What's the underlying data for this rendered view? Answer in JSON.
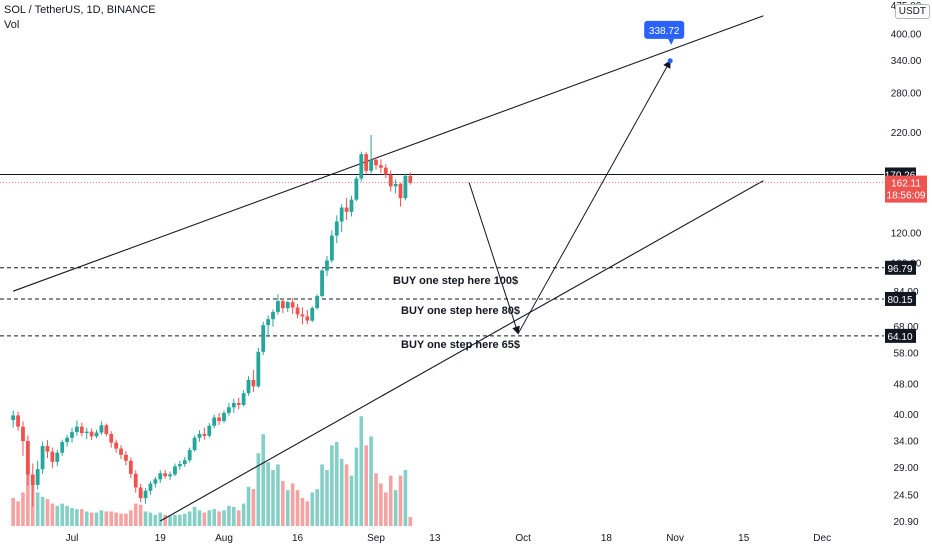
{
  "header": {
    "symbol": "SOL / TetherUS, 1D, BINANCE",
    "volume_label": "Vol",
    "currency": "USDT"
  },
  "colors": {
    "up": "#26a69a",
    "down": "#ef5350",
    "vol_up": "#84cfc6",
    "vol_down": "#f4a3a2",
    "line": "#131722",
    "target": "#2962ff"
  },
  "chart_data": {
    "type": "candlestick",
    "scale": "log",
    "ylim": [
      20.9,
      475
    ],
    "y_ticks": [
      "475.00",
      "400.00",
      "340.00",
      "280.00",
      "220.00",
      "120.00",
      "100.00",
      "84.00",
      "68.00",
      "58.00",
      "48.00",
      "40.00",
      "34.00",
      "29.00",
      "24.50",
      "20.90"
    ],
    "x_ticks": [
      {
        "label": "Jul",
        "date": "2021-07-01"
      },
      {
        "label": "19",
        "date": "2021-07-19"
      },
      {
        "label": "Aug",
        "date": "2021-08-01"
      },
      {
        "label": "16",
        "date": "2021-08-16"
      },
      {
        "label": "Sep",
        "date": "2021-09-01"
      },
      {
        "label": "13",
        "date": "2021-09-13"
      },
      {
        "label": "Oct",
        "date": "2021-10-01"
      },
      {
        "label": "18",
        "date": "2021-10-18"
      },
      {
        "label": "Nov",
        "date": "2021-11-01"
      },
      {
        "label": "15",
        "date": "2021-11-15"
      },
      {
        "label": "Dec",
        "date": "2021-12-01"
      }
    ],
    "start_date": "2021-06-19",
    "ohlc": [
      [
        38.5,
        40.8,
        36.8,
        39.6
      ],
      [
        39.6,
        40.5,
        36.1,
        37.0
      ],
      [
        37.0,
        38.2,
        31.0,
        33.9
      ],
      [
        33.9,
        35.1,
        25.9,
        27.7
      ],
      [
        27.7,
        29.6,
        22.8,
        26.0
      ],
      [
        26.0,
        30.1,
        25.3,
        28.6
      ],
      [
        28.6,
        33.8,
        27.8,
        32.9
      ],
      [
        32.9,
        34.1,
        30.6,
        31.8
      ],
      [
        31.8,
        32.6,
        28.8,
        29.9
      ],
      [
        29.9,
        32.2,
        29.1,
        31.6
      ],
      [
        31.6,
        34.2,
        31.0,
        33.7
      ],
      [
        33.7,
        35.2,
        32.8,
        34.6
      ],
      [
        34.6,
        36.7,
        33.6,
        35.8
      ],
      [
        35.8,
        38.4,
        35.0,
        37.0
      ],
      [
        37.0,
        37.9,
        34.9,
        35.6
      ],
      [
        35.6,
        36.7,
        34.3,
        35.9
      ],
      [
        35.9,
        36.6,
        34.1,
        34.9
      ],
      [
        34.9,
        36.3,
        34.5,
        35.7
      ],
      [
        35.7,
        38.2,
        35.2,
        37.3
      ],
      [
        37.3,
        37.7,
        34.9,
        35.4
      ],
      [
        35.4,
        36.0,
        32.6,
        33.6
      ],
      [
        33.6,
        34.2,
        31.6,
        32.4
      ],
      [
        32.4,
        33.1,
        30.4,
        31.2
      ],
      [
        31.2,
        31.9,
        29.3,
        30.1
      ],
      [
        30.1,
        30.7,
        27.1,
        27.8
      ],
      [
        27.8,
        28.4,
        24.8,
        25.6
      ],
      [
        25.6,
        26.2,
        23.4,
        24.0
      ],
      [
        24.0,
        25.5,
        23.2,
        25.1
      ],
      [
        25.1,
        26.6,
        24.5,
        26.2
      ],
      [
        26.2,
        27.3,
        25.6,
        26.9
      ],
      [
        26.9,
        28.4,
        26.3,
        27.9
      ],
      [
        27.9,
        28.5,
        27.0,
        27.4
      ],
      [
        27.4,
        28.2,
        26.8,
        27.7
      ],
      [
        27.7,
        29.6,
        27.4,
        29.1
      ],
      [
        29.1,
        30.1,
        28.5,
        29.5
      ],
      [
        29.5,
        30.8,
        29.0,
        30.2
      ],
      [
        30.2,
        32.6,
        29.8,
        32.1
      ],
      [
        32.1,
        35.1,
        31.8,
        34.6
      ],
      [
        34.6,
        36.2,
        33.8,
        35.4
      ],
      [
        35.4,
        36.8,
        34.2,
        35.0
      ],
      [
        35.0,
        37.8,
        34.6,
        37.2
      ],
      [
        37.2,
        39.8,
        36.6,
        39.1
      ],
      [
        39.1,
        40.2,
        37.4,
        38.3
      ],
      [
        38.3,
        40.8,
        37.8,
        40.2
      ],
      [
        40.2,
        42.7,
        39.5,
        41.6
      ],
      [
        41.6,
        43.8,
        40.2,
        42.7
      ],
      [
        42.7,
        44.1,
        41.1,
        42.2
      ],
      [
        42.2,
        46.1,
        41.8,
        45.3
      ],
      [
        45.3,
        50.2,
        44.6,
        49.1
      ],
      [
        49.1,
        52.1,
        45.6,
        47.2
      ],
      [
        47.2,
        59.6,
        46.8,
        58.2
      ],
      [
        58.2,
        69.8,
        57.1,
        68.4
      ],
      [
        68.4,
        72.5,
        63.6,
        70.9
      ],
      [
        70.9,
        75.2,
        67.8,
        74.1
      ],
      [
        74.1,
        82.4,
        72.9,
        79.1
      ],
      [
        79.1,
        80.3,
        73.6,
        75.8
      ],
      [
        75.8,
        79.2,
        74.1,
        78.6
      ],
      [
        78.6,
        80.6,
        73.2,
        76.1
      ],
      [
        76.1,
        77.8,
        71.2,
        73.0
      ],
      [
        73.0,
        76.2,
        68.7,
        72.1
      ],
      [
        72.1,
        74.9,
        68.8,
        70.3
      ],
      [
        70.3,
        76.6,
        69.7,
        75.9
      ],
      [
        75.9,
        82.5,
        75.1,
        81.6
      ],
      [
        81.6,
        96.1,
        80.9,
        95.2
      ],
      [
        95.2,
        104.0,
        92.1,
        101.2
      ],
      [
        101.2,
        121.3,
        99.8,
        117.6
      ],
      [
        117.6,
        133.0,
        112.4,
        128.1
      ],
      [
        128.1,
        142.2,
        120.3,
        139.4
      ],
      [
        139.4,
        147.6,
        129.4,
        135.8
      ],
      [
        135.8,
        149.6,
        132.1,
        146.2
      ],
      [
        146.2,
        168.3,
        144.6,
        166.1
      ],
      [
        166.1,
        195.4,
        163.2,
        192.6
      ],
      [
        192.6,
        194.8,
        170.2,
        174.1
      ],
      [
        174.1,
        216.2,
        171.2,
        186.2
      ],
      [
        186.2,
        189.2,
        175.4,
        180.1
      ],
      [
        180.1,
        186.6,
        171.6,
        177.4
      ],
      [
        177.4,
        181.2,
        166.5,
        170.1
      ],
      [
        170.1,
        174.2,
        153.6,
        158.4
      ],
      [
        158.4,
        165.2,
        151.7,
        160.8
      ],
      [
        160.8,
        162.0,
        140.2,
        147.6
      ],
      [
        147.6,
        171.2,
        145.8,
        168.9
      ],
      [
        168.9,
        172.4,
        160.1,
        162.1
      ]
    ],
    "volume": [
      [
        0.25,
        0
      ],
      [
        0.22,
        0
      ],
      [
        0.3,
        0
      ],
      [
        0.55,
        0
      ],
      [
        0.38,
        0
      ],
      [
        0.3,
        1
      ],
      [
        0.26,
        1
      ],
      [
        0.24,
        0
      ],
      [
        0.2,
        0
      ],
      [
        0.18,
        1
      ],
      [
        0.2,
        1
      ],
      [
        0.18,
        1
      ],
      [
        0.16,
        1
      ],
      [
        0.15,
        1
      ],
      [
        0.15,
        0
      ],
      [
        0.13,
        1
      ],
      [
        0.12,
        0
      ],
      [
        0.12,
        1
      ],
      [
        0.14,
        1
      ],
      [
        0.13,
        0
      ],
      [
        0.13,
        0
      ],
      [
        0.12,
        0
      ],
      [
        0.11,
        0
      ],
      [
        0.11,
        0
      ],
      [
        0.14,
        0
      ],
      [
        0.2,
        0
      ],
      [
        0.19,
        0
      ],
      [
        0.13,
        1
      ],
      [
        0.12,
        1
      ],
      [
        0.1,
        1
      ],
      [
        0.12,
        1
      ],
      [
        0.1,
        0
      ],
      [
        0.09,
        1
      ],
      [
        0.1,
        1
      ],
      [
        0.1,
        1
      ],
      [
        0.11,
        1
      ],
      [
        0.13,
        1
      ],
      [
        0.17,
        1
      ],
      [
        0.14,
        1
      ],
      [
        0.12,
        0
      ],
      [
        0.14,
        1
      ],
      [
        0.15,
        1
      ],
      [
        0.13,
        0
      ],
      [
        0.14,
        1
      ],
      [
        0.18,
        1
      ],
      [
        0.17,
        1
      ],
      [
        0.14,
        0
      ],
      [
        0.2,
        1
      ],
      [
        0.35,
        1
      ],
      [
        0.33,
        0
      ],
      [
        0.65,
        1
      ],
      [
        0.82,
        1
      ],
      [
        0.57,
        1
      ],
      [
        0.5,
        1
      ],
      [
        0.55,
        1
      ],
      [
        0.4,
        0
      ],
      [
        0.32,
        1
      ],
      [
        0.38,
        0
      ],
      [
        0.32,
        0
      ],
      [
        0.25,
        0
      ],
      [
        0.22,
        0
      ],
      [
        0.3,
        1
      ],
      [
        0.33,
        1
      ],
      [
        0.55,
        1
      ],
      [
        0.5,
        1
      ],
      [
        0.72,
        1
      ],
      [
        0.75,
        1
      ],
      [
        0.6,
        1
      ],
      [
        0.55,
        0
      ],
      [
        0.45,
        1
      ],
      [
        0.7,
        1
      ],
      [
        0.98,
        1
      ],
      [
        0.72,
        0
      ],
      [
        0.8,
        1
      ],
      [
        0.47,
        0
      ],
      [
        0.38,
        0
      ],
      [
        0.3,
        0
      ],
      [
        0.45,
        0
      ],
      [
        0.32,
        1
      ],
      [
        0.45,
        0
      ],
      [
        0.5,
        1
      ],
      [
        0.08,
        0
      ]
    ],
    "levels": [
      {
        "price": "170.26",
        "value": 170.26,
        "style": "solid"
      },
      {
        "price": "96.79",
        "value": 96.79,
        "style": "dashed"
      },
      {
        "price": "80.15",
        "value": 80.15,
        "style": "dashed"
      },
      {
        "price": "64.10",
        "value": 64.1,
        "style": "dashed"
      }
    ],
    "last_price": {
      "value": 162.11,
      "label": "162.11",
      "countdown": "18:56:09"
    },
    "annotations": [
      {
        "text": "BUY one step here 100$",
        "date": "2021-09-05",
        "price": 90
      },
      {
        "text": "BUY one step here 80$",
        "date": "2021-09-06",
        "price": 75
      },
      {
        "text": "BUY one step here 65$",
        "date": "2021-09-06",
        "price": 61
      }
    ],
    "channel_upper": [
      [
        "2021-06-19",
        84
      ],
      [
        "2021-11-19",
        445
      ]
    ],
    "channel_lower": [
      [
        "2021-07-19",
        20.9
      ],
      [
        "2021-11-19",
        164
      ]
    ],
    "projection": [
      [
        "2021-09-20",
        162
      ],
      [
        "2021-09-30",
        65
      ],
      [
        "2021-10-31",
        338.72
      ]
    ],
    "target": {
      "value": 338.72,
      "label": "338.72",
      "date": "2021-10-31"
    }
  }
}
